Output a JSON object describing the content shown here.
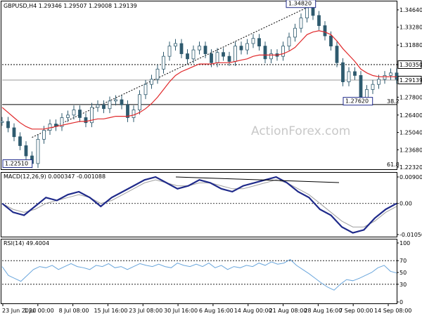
{
  "colors": {
    "background": "#ffffff",
    "axis": "#000000",
    "candle": "#2e5a6e",
    "ma": "#e0282a",
    "macd": "#1f2a8a",
    "signal": "#a0a0a0",
    "rsi": "#6aa6dc",
    "label_box_bg": "#ffffff",
    "label_box_border": "#1f2a8a",
    "label_box_text": "#1f2a8a"
  },
  "watermark": "ActionForex.com",
  "chart_data": [
    {
      "type": "line",
      "title": "GBPUSD,H4 1.29346 1.29507 1.29008 1.29139",
      "y_ticks": [
        "1.34640",
        "1.33280",
        "1.31880",
        "1.30350",
        "1.29139",
        "1.27800",
        "1.26400",
        "1.25040",
        "1.23680",
        "1.22320"
      ],
      "ylim": [
        1.2232,
        1.3464
      ],
      "x_ticks": [
        "23 Jun 2020",
        "1 Jul 00:00",
        "8 Jul 08:00",
        "15 Jul 16:00",
        "23 Jul 08:00",
        "30 Jul 16:00",
        "6 Aug 16:00",
        "14 Aug 00:00",
        "21 Aug 08:00",
        "28 Aug 16:00",
        "7 Sep 00:00",
        "14 Sep 08:00"
      ],
      "annotations": {
        "high_label": "1.34820",
        "low_label": "1.22510",
        "swing_low_label": "1.27620",
        "level_label": "1.30350",
        "current_label": "1.29139",
        "fib_382": "38.2",
        "fib_618": "61.8"
      },
      "series": [
        {
          "values": [
            1.259,
            1.254,
            1.247,
            1.24,
            1.232,
            1.226,
            1.245,
            1.252,
            1.257,
            1.255,
            1.262,
            1.264,
            1.268,
            1.262,
            1.258,
            1.27,
            1.272,
            1.269,
            1.275,
            1.276,
            1.272,
            1.262,
            1.268,
            1.28,
            1.288,
            1.292,
            1.3,
            1.31,
            1.318,
            1.32,
            1.312,
            1.308,
            1.315,
            1.318,
            1.312,
            1.305,
            1.313,
            1.31,
            1.306,
            1.318,
            1.315,
            1.32,
            1.324,
            1.318,
            1.308,
            1.312,
            1.31,
            1.318,
            1.325,
            1.332,
            1.34,
            1.348,
            1.342,
            1.334,
            1.326,
            1.318,
            1.305,
            1.29,
            1.298,
            1.295,
            1.277,
            1.284,
            1.288,
            1.292,
            1.295,
            1.297,
            1.292
          ]
        },
        {
          "values": [
            1.27,
            1.266,
            1.262,
            1.258,
            1.255,
            1.253,
            1.253,
            1.253,
            1.254,
            1.255,
            1.256,
            1.257,
            1.258,
            1.259,
            1.259,
            1.26,
            1.261,
            1.261,
            1.262,
            1.263,
            1.263,
            1.263,
            1.264,
            1.266,
            1.269,
            1.273,
            1.278,
            1.284,
            1.29,
            1.295,
            1.298,
            1.3,
            1.302,
            1.304,
            1.304,
            1.304,
            1.305,
            1.305,
            1.305,
            1.306,
            1.307,
            1.308,
            1.31,
            1.311,
            1.311,
            1.311,
            1.311,
            1.312,
            1.314,
            1.317,
            1.322,
            1.327,
            1.329,
            1.33,
            1.329,
            1.327,
            1.322,
            1.316,
            1.311,
            1.306,
            1.3,
            1.297,
            1.295,
            1.294,
            1.294,
            1.294,
            1.294
          ]
        }
      ]
    },
    {
      "type": "line",
      "title": "MACD(12,26,9) 0.000347 -0.001088",
      "y_ticks": [
        "0.009003",
        "0.00",
        "-0.010566"
      ],
      "ylim": [
        -0.010566,
        0.009003
      ],
      "series": [
        {
          "values": [
            0.0,
            -0.003,
            -0.004,
            -0.001,
            0.002,
            0.001,
            0.003,
            0.004,
            0.002,
            -0.001,
            0.002,
            0.004,
            0.006,
            0.008,
            0.009,
            0.007,
            0.005,
            0.006,
            0.008,
            0.007,
            0.005,
            0.004,
            0.006,
            0.007,
            0.008,
            0.009,
            0.007,
            0.004,
            0.002,
            -0.002,
            -0.004,
            -0.008,
            -0.01,
            -0.009,
            -0.005,
            -0.002,
            0.0
          ]
        },
        {
          "values": [
            0.0,
            -0.002,
            -0.003,
            -0.002,
            0.0,
            0.001,
            0.002,
            0.003,
            0.002,
            0.0,
            0.001,
            0.003,
            0.005,
            0.007,
            0.008,
            0.007,
            0.006,
            0.006,
            0.007,
            0.007,
            0.006,
            0.005,
            0.005,
            0.006,
            0.007,
            0.008,
            0.007,
            0.005,
            0.003,
            0.0,
            -0.003,
            -0.006,
            -0.008,
            -0.008,
            -0.006,
            -0.003,
            -0.001
          ]
        }
      ]
    },
    {
      "type": "line",
      "title": "RSI(14) 49.4004",
      "y_ticks": [
        "100",
        "70",
        "50",
        "30",
        "0"
      ],
      "ylim": [
        0,
        100
      ],
      "series": [
        {
          "values": [
            60,
            45,
            40,
            35,
            45,
            55,
            60,
            58,
            62,
            55,
            60,
            65,
            60,
            58,
            55,
            62,
            60,
            65,
            58,
            60,
            55,
            60,
            65,
            62,
            60,
            64,
            60,
            58,
            66,
            62,
            60,
            64,
            60,
            66,
            58,
            62,
            55,
            60,
            58,
            62,
            60,
            66,
            62,
            68,
            64,
            66,
            72,
            62,
            55,
            48,
            40,
            32,
            25,
            20,
            30,
            38,
            36,
            40,
            45,
            50,
            58,
            62,
            52,
            49
          ]
        }
      ]
    }
  ]
}
